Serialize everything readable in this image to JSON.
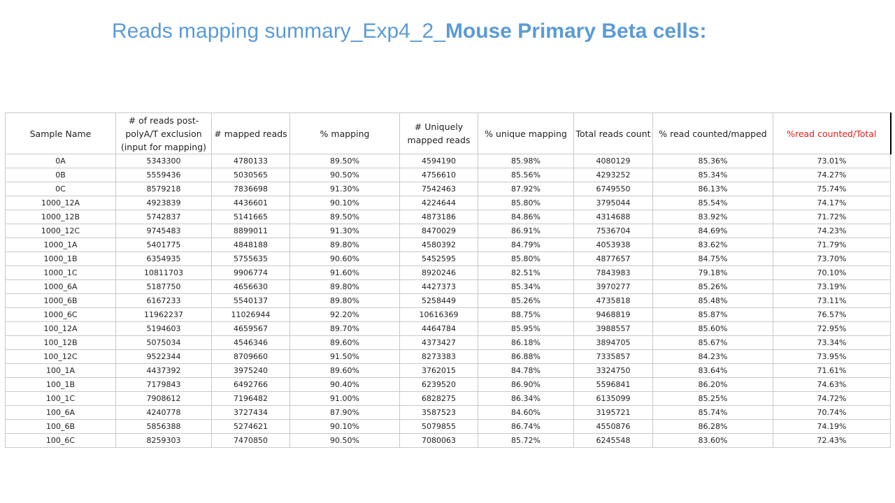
{
  "title": {
    "part1": "Reads mapping summary_Exp4_2_",
    "part2": "Mouse Primary Beta cells:"
  },
  "table": {
    "headers": [
      "Sample Name",
      "# of reads post-polyA/T exclusion (input for mapping)",
      "# mapped reads",
      "% mapping",
      "# Uniquely mapped reads",
      "% unique mapping",
      "Total reads count",
      "% read counted/mapped",
      "%read counted/Total"
    ],
    "rows": [
      [
        "0A",
        "5343300",
        "4780133",
        "89.50%",
        "4594190",
        "85.98%",
        "4080129",
        "85.36%",
        "73.01%"
      ],
      [
        "0B",
        "5559436",
        "5030565",
        "90.50%",
        "4756610",
        "85.56%",
        "4293252",
        "85.34%",
        "74.27%"
      ],
      [
        "0C",
        "8579218",
        "7836698",
        "91.30%",
        "7542463",
        "87.92%",
        "6749550",
        "86.13%",
        "75.74%"
      ],
      [
        "1000_12A",
        "4923839",
        "4436601",
        "90.10%",
        "4224644",
        "85.80%",
        "3795044",
        "85.54%",
        "74.17%"
      ],
      [
        "1000_12B",
        "5742837",
        "5141665",
        "89.50%",
        "4873186",
        "84.86%",
        "4314688",
        "83.92%",
        "71.72%"
      ],
      [
        "1000_12C",
        "9745483",
        "8899011",
        "91.30%",
        "8470029",
        "86.91%",
        "7536704",
        "84.69%",
        "74.23%"
      ],
      [
        "1000_1A",
        "5401775",
        "4848188",
        "89.80%",
        "4580392",
        "84.79%",
        "4053938",
        "83.62%",
        "71.79%"
      ],
      [
        "1000_1B",
        "6354935",
        "5755635",
        "90.60%",
        "5452595",
        "85.80%",
        "4877657",
        "84.75%",
        "73.70%"
      ],
      [
        "1000_1C",
        "10811703",
        "9906774",
        "91.60%",
        "8920246",
        "82.51%",
        "7843983",
        "79.18%",
        "70.10%"
      ],
      [
        "1000_6A",
        "5187750",
        "4656630",
        "89.80%",
        "4427373",
        "85.34%",
        "3970277",
        "85.26%",
        "73.19%"
      ],
      [
        "1000_6B",
        "6167233",
        "5540137",
        "89.80%",
        "5258449",
        "85.26%",
        "4735818",
        "85.48%",
        "73.11%"
      ],
      [
        "1000_6C",
        "11962237",
        "11026944",
        "92.20%",
        "10616369",
        "88.75%",
        "9468819",
        "85.87%",
        "76.57%"
      ],
      [
        "100_12A",
        "5194603",
        "4659567",
        "89.70%",
        "4464784",
        "85.95%",
        "3988557",
        "85.60%",
        "72.95%"
      ],
      [
        "100_12B",
        "5075034",
        "4546346",
        "89.60%",
        "4373427",
        "86.18%",
        "3894705",
        "85.67%",
        "73.34%"
      ],
      [
        "100_12C",
        "9522344",
        "8709660",
        "91.50%",
        "8273383",
        "86.88%",
        "7335857",
        "84.23%",
        "73.95%"
      ],
      [
        "100_1A",
        "4437392",
        "3975240",
        "89.60%",
        "3762015",
        "84.78%",
        "3324750",
        "83.64%",
        "71.61%"
      ],
      [
        "100_1B",
        "7179843",
        "6492766",
        "90.40%",
        "6239520",
        "86.90%",
        "5596841",
        "86.20%",
        "74.63%"
      ],
      [
        "100_1C",
        "7908612",
        "7196482",
        "91.00%",
        "6828275",
        "86.34%",
        "6135099",
        "85.25%",
        "74.72%"
      ],
      [
        "100_6A",
        "4240778",
        "3727434",
        "87.90%",
        "3587523",
        "84.60%",
        "3195721",
        "85.74%",
        "70.74%"
      ],
      [
        "100_6B",
        "5856388",
        "5274621",
        "90.10%",
        "5079855",
        "86.74%",
        "4550876",
        "86.28%",
        "74.19%"
      ],
      [
        "100_6C",
        "8259303",
        "7470850",
        "90.50%",
        "7080063",
        "85.72%",
        "6245548",
        "83.60%",
        "72.43%"
      ]
    ]
  },
  "colors": {
    "title": "#5b9bd5",
    "highlight_header": "#e0201b",
    "grid": "#c9c9c9"
  }
}
